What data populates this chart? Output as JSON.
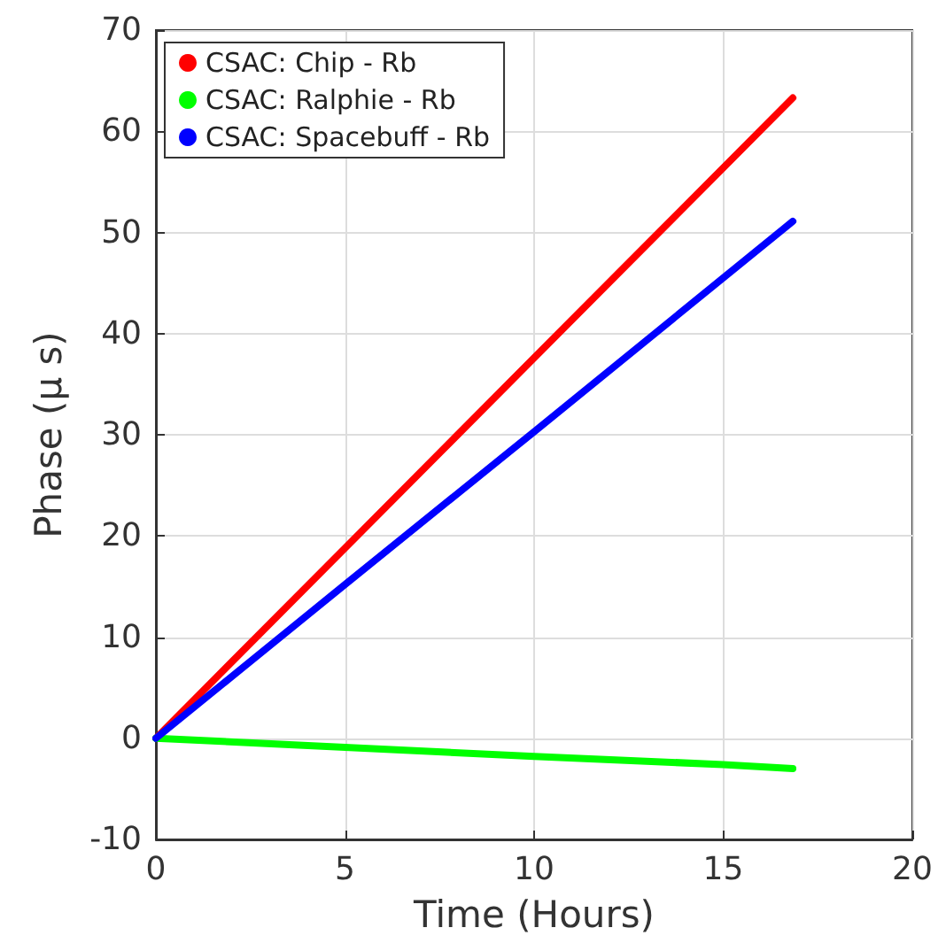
{
  "chart_data": {
    "type": "line",
    "xlabel": "Time (Hours)",
    "ylabel": "Phase (μ s)",
    "xlim": [
      0,
      20
    ],
    "xticks": [
      0,
      5,
      10,
      15,
      20
    ],
    "ylim": [
      -10,
      70
    ],
    "yticks": [
      -10,
      0,
      10,
      20,
      30,
      40,
      50,
      60,
      70
    ],
    "grid": true,
    "legend": "top left",
    "marker": "none",
    "line_style": "solid",
    "series": [
      {
        "name": "CSAC: Chip - Rb",
        "color": "#ff0000",
        "x": [
          0,
          5,
          10,
          16.84
        ],
        "values": [
          0,
          18.8,
          37.6,
          63.3
        ]
      },
      {
        "name": "CSAC: Ralphie - Rb",
        "color": "#00ff00",
        "x": [
          0,
          5,
          10,
          15,
          16.84
        ],
        "values": [
          0,
          -0.9,
          -1.8,
          -2.6,
          -3.0
        ]
      },
      {
        "name": "CSAC: Spacebuff - Rb",
        "color": "#0000ff",
        "x": [
          0,
          5,
          10,
          16.84
        ],
        "values": [
          0,
          15.2,
          30.3,
          51.1
        ]
      }
    ]
  }
}
